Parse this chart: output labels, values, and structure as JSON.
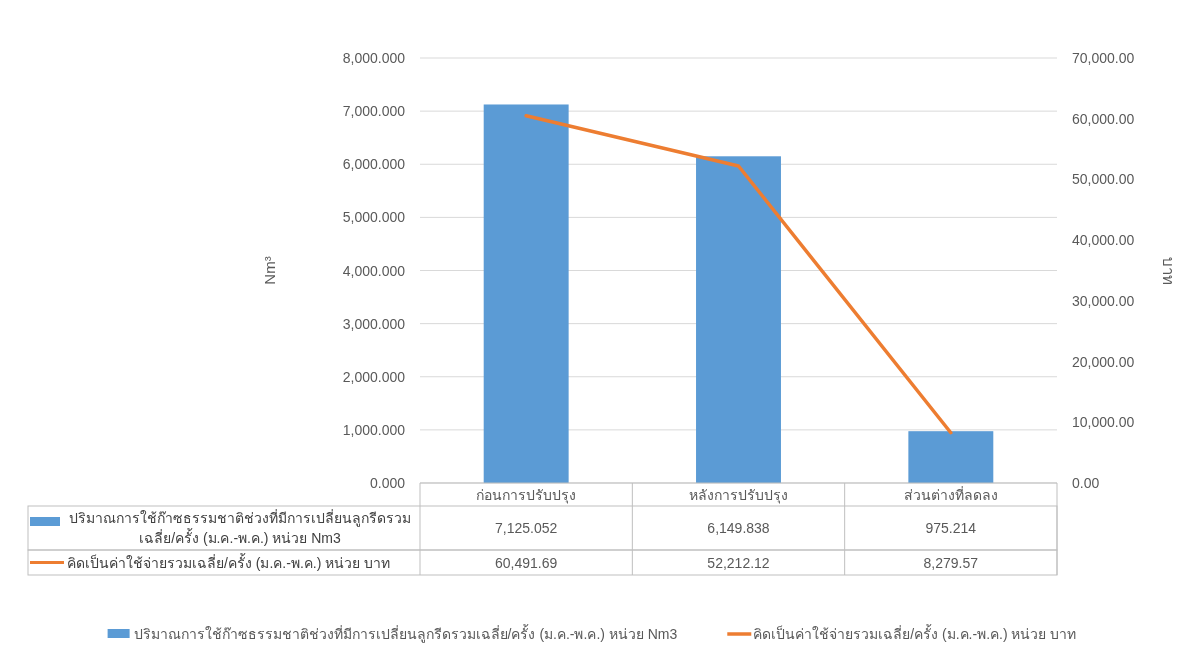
{
  "chart_data": {
    "type": "bar",
    "categories": [
      "ก่อนการปรับปรุง",
      "หลังการปรับปรุง",
      "ส่วนต่างที่ลดลง"
    ],
    "ylabel": "Nm³",
    "y2label": "บาท",
    "ylim": [
      0,
      8000
    ],
    "yticks": [
      {
        "value": 0,
        "label": "0.000"
      },
      {
        "value": 1000,
        "label": "1,000.000"
      },
      {
        "value": 2000,
        "label": "2,000.000"
      },
      {
        "value": 3000,
        "label": "3,000.000"
      },
      {
        "value": 4000,
        "label": "4,000.000"
      },
      {
        "value": 5000,
        "label": "5,000.000"
      },
      {
        "value": 6000,
        "label": "6,000.000"
      },
      {
        "value": 7000,
        "label": "7,000.000"
      },
      {
        "value": 8000,
        "label": "8,000.000"
      }
    ],
    "y2lim": [
      0,
      70000
    ],
    "y2ticks": [
      {
        "value": 0,
        "label": "0.00"
      },
      {
        "value": 10000,
        "label": "10,000.00"
      },
      {
        "value": 20000,
        "label": "20,000.00"
      },
      {
        "value": 30000,
        "label": "30,000.00"
      },
      {
        "value": 40000,
        "label": "40,000.00"
      },
      {
        "value": 50000,
        "label": "50,000.00"
      },
      {
        "value": 60000,
        "label": "60,000.00"
      },
      {
        "value": 70000,
        "label": "70,000.00"
      }
    ],
    "series": [
      {
        "name": "ปริมาณการใช้ก๊าซธรรมชาติช่วงที่มีการเปลี่ยนลูกรีดรวมเฉลี่ย/ครั้ง (ม.ค.-พ.ค.) หน่วย Nm3",
        "color": "#5b9bd5",
        "values": [
          7125.052,
          6149.838,
          975.214
        ],
        "value_labels": [
          "7,125.052",
          "6,149.838",
          "975.214"
        ]
      },
      {
        "name": "คิดเป็นค่าใช้จ่ายรวมเฉลี่ย/ครั้ง (ม.ค.-พ.ค.) หน่วย บาท",
        "type": "line",
        "axis": "y2",
        "color": "#ed7d31",
        "values": [
          60491.69,
          52212.12,
          8279.57
        ],
        "value_labels": [
          "60,491.69",
          "52,212.12",
          "8,279.57"
        ]
      }
    ],
    "grid": "y",
    "legend": "bottom",
    "marker": "none",
    "line_style": "solid"
  }
}
